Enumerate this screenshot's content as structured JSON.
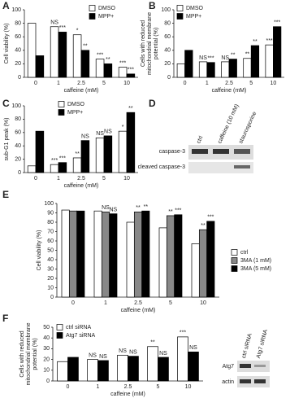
{
  "chart_data": [
    {
      "type": "bar",
      "label": "A",
      "xlabel": "caffeine (mM)",
      "ylabel": [
        "Cell viability (%)"
      ],
      "categories": [
        "0",
        "1",
        "2.5",
        "5",
        "10"
      ],
      "ylim": [
        0,
        100
      ],
      "yticks": [
        0,
        20,
        40,
        60,
        80,
        100
      ],
      "series": [
        {
          "name": "DMSO",
          "color": "#ffffff",
          "values": [
            80,
            75,
            63,
            27,
            15
          ],
          "significance": [
            null,
            "NS",
            "*",
            "***",
            "***"
          ]
        },
        {
          "name": "MPP+",
          "color": "#000000",
          "values": [
            32,
            67,
            40,
            20,
            5
          ],
          "significance": [
            null,
            "***",
            "**",
            "**",
            "***"
          ]
        }
      ]
    },
    {
      "type": "bar",
      "label": "B",
      "xlabel": "caffeine (mM)",
      "ylabel": [
        "Cells with reduced",
        "mitochondrial membrane",
        "potential (%)"
      ],
      "categories": [
        "0",
        "1",
        "2.5",
        "5",
        "10"
      ],
      "ylim": [
        0,
        100
      ],
      "yticks": [
        0,
        20,
        40,
        60,
        80,
        100
      ],
      "series": [
        {
          "name": "DMSO",
          "color": "#ffffff",
          "values": [
            20,
            23,
            23,
            28,
            48
          ],
          "significance": [
            null,
            "NS",
            "NS",
            "**",
            "***"
          ]
        },
        {
          "name": "MPP+",
          "color": "#000000",
          "values": [
            40,
            22,
            27,
            47,
            75
          ],
          "significance": [
            null,
            "***",
            "**",
            "**",
            "***"
          ]
        }
      ]
    },
    {
      "type": "bar",
      "label": "C",
      "xlabel": "caffeine (mM)",
      "ylabel": [
        "sub-G1 peak (%)"
      ],
      "categories": [
        "0",
        "1",
        "2.5",
        "5",
        "10"
      ],
      "ylim": [
        0,
        100
      ],
      "yticks": [
        0,
        20,
        40,
        60,
        80,
        100
      ],
      "series": [
        {
          "name": "DMSO",
          "color": "#ffffff",
          "values": [
            10,
            12,
            22,
            52,
            62
          ],
          "significance": [
            null,
            "***",
            "**",
            "NS",
            "*"
          ]
        },
        {
          "name": "MPP+",
          "color": "#000000",
          "values": [
            62,
            15,
            48,
            55,
            90
          ],
          "significance": [
            null,
            "***",
            "NS",
            "NS",
            "**"
          ]
        }
      ]
    },
    {
      "type": "bar",
      "label": "E",
      "xlabel": "caffeine (mM)",
      "ylabel": [
        "Cell viability (%)"
      ],
      "categories": [
        "0",
        "1",
        "2.5",
        "5",
        "10"
      ],
      "ylim": [
        0,
        100
      ],
      "yticks": [
        0,
        10,
        20,
        30,
        40,
        50,
        60,
        70,
        80,
        90,
        100
      ],
      "series": [
        {
          "name": "ctrl",
          "color": "#ffffff",
          "values": [
            93,
            92,
            80,
            74,
            57
          ],
          "significance": [
            null,
            null,
            null,
            null,
            null
          ]
        },
        {
          "name": "3MA (1 mM)",
          "color": "#888888",
          "values": [
            92,
            91,
            91,
            87,
            72
          ],
          "significance": [
            null,
            "NS",
            "**",
            "**",
            "**"
          ]
        },
        {
          "name": "3MA (5 mM)",
          "color": "#000000",
          "values": [
            92,
            89,
            92,
            88,
            81
          ],
          "significance": [
            null,
            "NS",
            "**",
            "***",
            "***"
          ]
        }
      ]
    },
    {
      "type": "bar",
      "label": "F",
      "xlabel": "caffeine (mM)",
      "ylabel": [
        "Cells with reduced",
        "mitochondrial membrane",
        "potential (%)"
      ],
      "categories": [
        "0",
        "1",
        "2.5",
        "5",
        "10"
      ],
      "ylim": [
        0,
        50
      ],
      "yticks": [
        0,
        10,
        20,
        30,
        40,
        50
      ],
      "series": [
        {
          "name": "ctrl siRNA",
          "color": "#ffffff",
          "values": [
            18,
            20,
            24,
            32,
            41
          ],
          "significance": [
            null,
            "NS",
            "NS",
            "**",
            "***"
          ]
        },
        {
          "name": "Atg7 siRNA",
          "color": "#000000",
          "values": [
            22,
            19,
            23,
            22,
            27
          ],
          "significance": [
            null,
            "NS",
            "NS",
            "NS",
            "NS"
          ]
        }
      ]
    }
  ],
  "blots": {
    "D": {
      "label": "D",
      "lanes": [
        "ctrl",
        "caffeine (10 mM)",
        "staurosporine"
      ],
      "bands": [
        "caspase-3",
        "cleaved caspase-3"
      ]
    },
    "F": {
      "lanes": [
        "ctrl siRNA",
        "Atg7 siRNA"
      ],
      "bands": [
        "Atg7",
        "actin"
      ]
    }
  }
}
